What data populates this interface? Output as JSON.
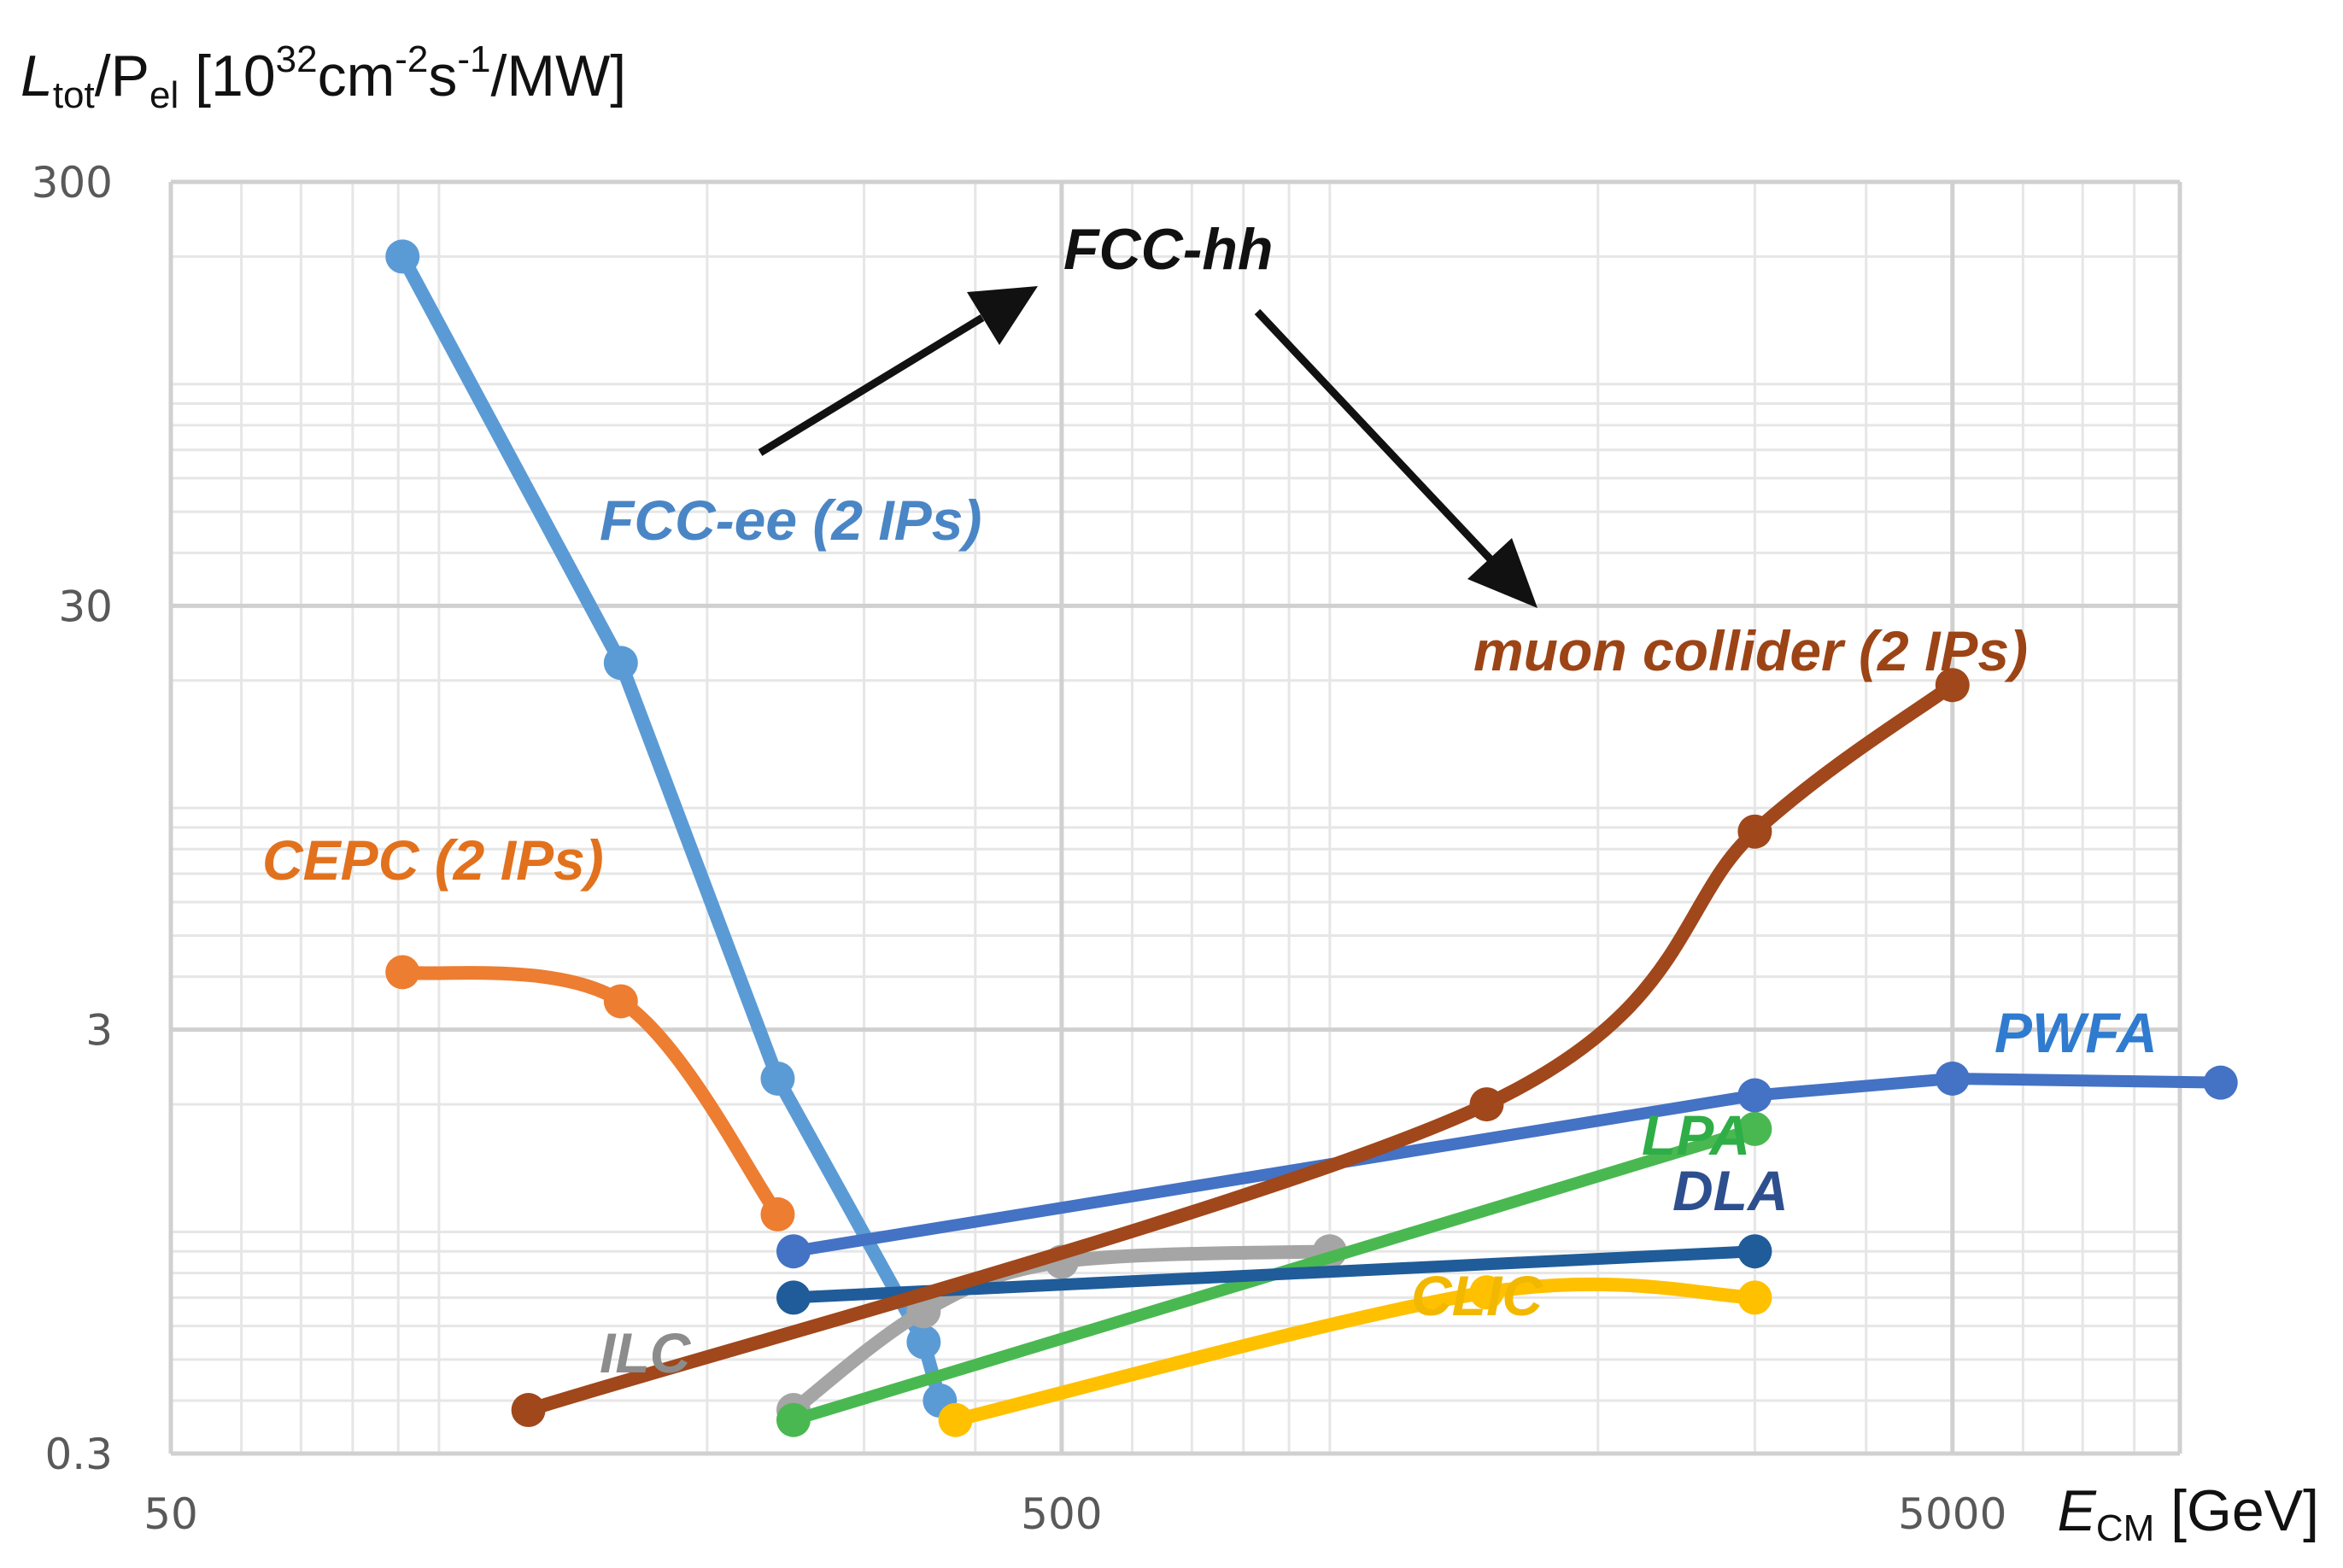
{
  "chart_data": {
    "type": "line",
    "title": "",
    "xlabel": {
      "main": "E",
      "sub": "CM",
      "unit": " [GeV]"
    },
    "ylabel": {
      "main": "L",
      "sub1": "tot",
      "mid": "/P",
      "sub2": "el",
      "open": " [10",
      "sup1": "32",
      "cm": "cm",
      "sup2": "-2",
      "s": "s",
      "sup3": "-1",
      "unit": "/MW]"
    },
    "xscale": "log",
    "yscale": "log",
    "xlim": [
      50,
      9000
    ],
    "ylim": [
      0.3,
      300
    ],
    "xticks": [
      {
        "value": 50,
        "label": "50"
      },
      {
        "value": 500,
        "label": "500"
      },
      {
        "value": 5000,
        "label": "5000"
      }
    ],
    "yticks": [
      {
        "value": 0.3,
        "label": "0.3"
      },
      {
        "value": 3,
        "label": "3"
      },
      {
        "value": 30,
        "label": "30"
      },
      {
        "value": 300,
        "label": "300"
      }
    ],
    "grid": true,
    "series": [
      {
        "name": "FCC-ee (2 IPs)",
        "color": "#5b9bd5",
        "width": 16,
        "smooth": false,
        "x": [
          91,
          160,
          240,
          350,
          365
        ],
        "y": [
          200,
          22,
          2.3,
          0.55,
          0.4
        ]
      },
      {
        "name": "CEPC (2 IPs)",
        "color": "#ed7d31",
        "width": 16,
        "smooth": true,
        "x": [
          91,
          160,
          240
        ],
        "y": [
          4.1,
          3.5,
          1.1
        ]
      },
      {
        "name": "ILC",
        "color": "#a5a5a5",
        "width": 16,
        "smooth": true,
        "x": [
          250,
          350,
          500,
          1000
        ],
        "y": [
          0.38,
          0.65,
          0.85,
          0.9
        ]
      },
      {
        "name": "CLIC",
        "color": "#ffc000",
        "width": 16,
        "smooth": true,
        "x": [
          380,
          1500,
          3000
        ],
        "y": [
          0.36,
          0.72,
          0.7
        ]
      },
      {
        "name": "LPA",
        "color": "#4ab851",
        "width": 14,
        "smooth": false,
        "x": [
          250,
          3000
        ],
        "y": [
          0.36,
          1.75
        ]
      },
      {
        "name": "DLA",
        "color": "#1f5c99",
        "width": 14,
        "smooth": false,
        "x": [
          250,
          3000
        ],
        "y": [
          0.7,
          0.9
        ]
      },
      {
        "name": "PWFA",
        "color": "#4472c4",
        "width": 14,
        "smooth": false,
        "x": [
          250,
          3000,
          5000,
          10000
        ],
        "y": [
          0.9,
          2.1,
          2.3,
          2.25
        ]
      },
      {
        "name": "muon collider (2 IPs)",
        "color": "#a0471b",
        "width": 16,
        "smooth": true,
        "x": [
          126,
          1500,
          3000,
          5000
        ],
        "y": [
          0.38,
          2.0,
          8.8,
          19.5
        ]
      }
    ],
    "annotations": [
      {
        "text": "FCC-hh",
        "color": "#111111"
      }
    ],
    "series_labels": [
      {
        "text": "FCC-ee (2 IPs)",
        "color": "#4a86c5"
      },
      {
        "text": "CEPC (2 IPs)",
        "color": "#e2711d"
      },
      {
        "text": "ILC",
        "color": "#8c8c8c"
      },
      {
        "text": "CLIC",
        "color": "#f2b800"
      },
      {
        "text": "LPA",
        "color": "#2fae47"
      },
      {
        "text": "DLA",
        "color": "#2d4f8e"
      },
      {
        "text": "PWFA",
        "color": "#2f7bd0"
      },
      {
        "text": "muon collider (2 IPs)",
        "color": "#9c4416"
      }
    ]
  }
}
